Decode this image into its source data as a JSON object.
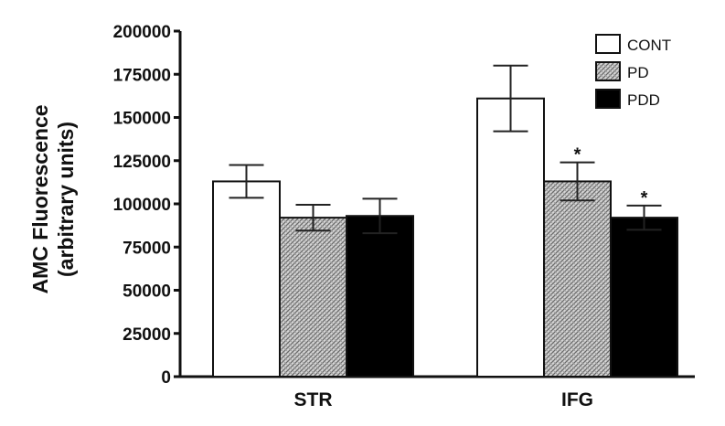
{
  "chart_data": {
    "type": "bar",
    "categories": [
      "STR",
      "IFG"
    ],
    "series": [
      {
        "name": "CONT",
        "values": [
          113000,
          161000
        ],
        "errors": [
          9500,
          19000
        ],
        "fill": "#ffffff",
        "pattern": "none"
      },
      {
        "name": "PD",
        "values": [
          92000,
          113000
        ],
        "errors": [
          7500,
          11000
        ],
        "fill": "#bdbdbd",
        "pattern": "hatch"
      },
      {
        "name": "PDD",
        "values": [
          93000,
          92000
        ],
        "errors": [
          10000,
          7000
        ],
        "fill": "#000000",
        "pattern": "none"
      }
    ],
    "significance": [
      {
        "category": "IFG",
        "series": "PD",
        "label": "*"
      },
      {
        "category": "IFG",
        "series": "PDD",
        "label": "*"
      }
    ],
    "ylabel_line1": "AMC Fluorescence",
    "ylabel_line2": "(arbitrary units)",
    "xlabel": "",
    "ylim": [
      0,
      200000
    ],
    "yticks": [
      0,
      25000,
      50000,
      75000,
      100000,
      125000,
      150000,
      175000,
      200000
    ],
    "ytick_labels": [
      "0",
      "25000",
      "50000",
      "75000",
      "100000",
      "125000",
      "150000",
      "175000",
      "200000"
    ],
    "grid": false,
    "legend_position": "top-right"
  }
}
